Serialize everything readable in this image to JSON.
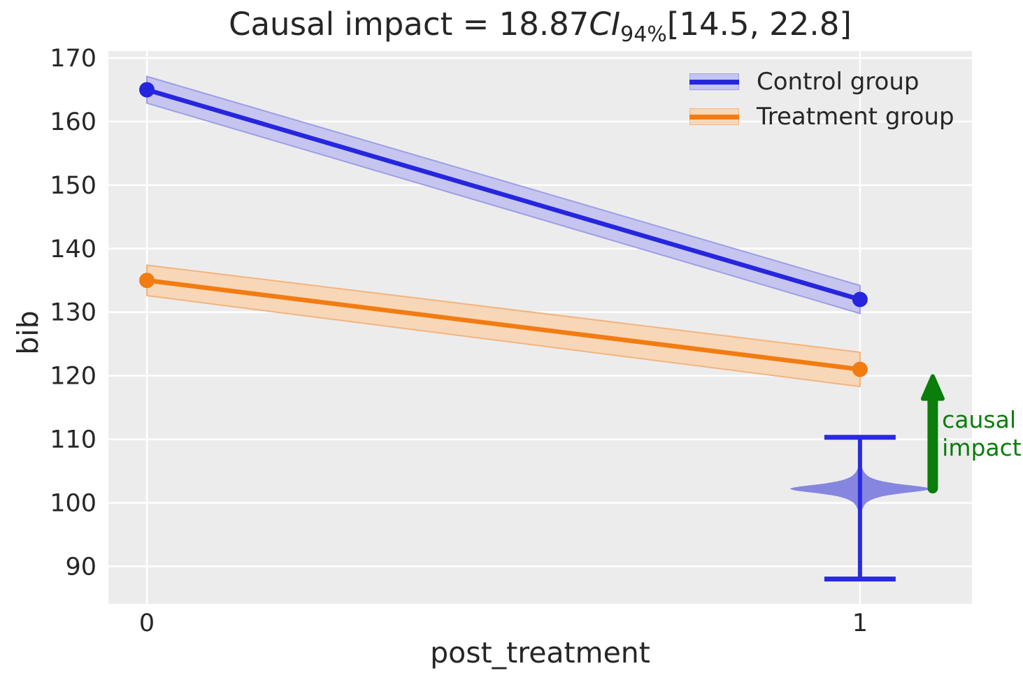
{
  "figure": {
    "title": {
      "prefix": "Causal impact = 18.87",
      "stat": "CI",
      "subscript": "94%",
      "interval": "[14.5, 22.8]"
    },
    "colors": {
      "figure_background": "#ffffff",
      "axes_background": "#ececec",
      "grid": "#ffffff",
      "text": "#262626"
    }
  },
  "chart_data": {
    "type": "line",
    "title": "Causal impact = 18.87 CI 94% [14.5, 22.8]",
    "xlabel": "post_treatment",
    "ylabel": "bib",
    "xlim": [
      -0.054,
      1.157
    ],
    "ylim": [
      84.1,
      171.1
    ],
    "grid": true,
    "xticks": [
      0,
      1
    ],
    "yticks": [
      90,
      100,
      110,
      120,
      130,
      140,
      150,
      160,
      170
    ],
    "x": [
      0,
      1
    ],
    "series": [
      {
        "name": "Control group",
        "color": "#2626de",
        "band_color": "#c5c5ef",
        "band_edge": "#9e9ee8",
        "values": [
          165,
          132
        ],
        "band_lower": [
          162.9,
          129.8
        ],
        "band_upper": [
          167.1,
          134.2
        ]
      },
      {
        "name": "Treatment group",
        "color": "#f27c11",
        "band_color": "#f7d7b8",
        "band_edge": "#f3b47e",
        "values": [
          135,
          121
        ],
        "band_lower": [
          132.6,
          118.3
        ],
        "band_upper": [
          137.4,
          123.7
        ]
      }
    ],
    "violin": {
      "x": 1,
      "fill": "#7d7dde",
      "line_color": "#2a2ae0",
      "peak": 102.2,
      "extent": [
        96.8,
        107.9
      ],
      "max_halfwidth": 0.098,
      "whisker_low": 88,
      "whisker_high": 110.3,
      "cap_halfwidth": 0.05
    },
    "annotation": {
      "line1": "causal",
      "line2": "impact",
      "color": "#0a7d0a",
      "arrow_x": 1.102,
      "arrow_from": 102.3,
      "arrow_to": 119.9,
      "text_x": 1.115,
      "text_y": 115.2
    },
    "legend": {
      "position": "upper right",
      "entries": [
        "Control group",
        "Treatment group"
      ]
    }
  }
}
